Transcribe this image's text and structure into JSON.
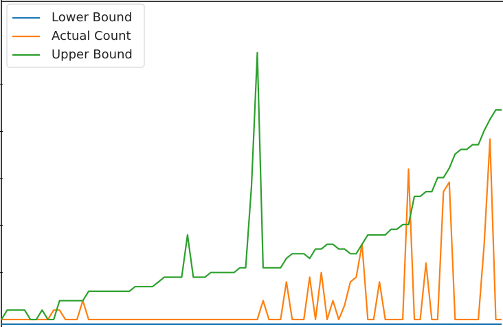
{
  "chart_data": {
    "type": "line",
    "x": [
      0,
      1,
      2,
      3,
      4,
      5,
      6,
      7,
      8,
      9,
      10,
      11,
      12,
      13,
      14,
      15,
      16,
      17,
      18,
      19,
      20,
      21,
      22,
      23,
      24,
      25,
      26,
      27,
      28,
      29,
      30,
      31,
      32,
      33,
      34,
      35,
      36,
      37,
      38,
      39,
      40,
      41,
      42,
      43,
      44,
      45,
      46,
      47,
      48,
      49,
      50,
      51,
      52,
      53,
      54,
      55,
      56,
      57,
      58,
      59,
      60,
      61,
      62,
      63,
      64,
      65,
      66,
      67,
      68,
      69,
      70,
      71,
      72,
      73,
      74,
      75,
      76,
      77,
      78,
      79,
      80,
      81,
      82,
      83,
      84,
      85,
      86
    ],
    "xlim": [
      0,
      86
    ],
    "ylim": [
      -0.8,
      34
    ],
    "yticks": [
      5,
      10,
      15,
      20,
      25
    ],
    "legend": "upper-left",
    "series": [
      {
        "name": "Lower Bound",
        "color": "#1f77b4",
        "values": [
          -0.5,
          -0.5,
          -0.5,
          -0.5,
          -0.5,
          -0.5,
          -0.5,
          -0.5,
          -0.5,
          -0.5,
          -0.5,
          -0.5,
          -0.5,
          -0.5,
          -0.5,
          -0.5,
          -0.5,
          -0.5,
          -0.5,
          -0.5,
          -0.5,
          -0.5,
          -0.5,
          -0.5,
          -0.5,
          -0.5,
          -0.5,
          -0.5,
          -0.5,
          -0.5,
          -0.5,
          -0.5,
          -0.5,
          -0.5,
          -0.5,
          -0.5,
          -0.5,
          -0.5,
          -0.5,
          -0.5,
          -0.5,
          -0.5,
          -0.5,
          -0.5,
          -0.5,
          -0.5,
          -0.5,
          -0.5,
          -0.5,
          -0.5,
          -0.5,
          -0.5,
          -0.5,
          -0.5,
          -0.5,
          -0.5,
          -0.5,
          -0.5,
          -0.5,
          -0.5,
          -0.5,
          -0.5,
          -0.5,
          -0.5,
          -0.5,
          -0.5,
          -0.5,
          -0.5,
          -0.5,
          -0.5,
          -0.5,
          -0.5,
          -0.5,
          -0.5,
          -0.5,
          -0.5,
          -0.5,
          -0.5,
          -0.5,
          -0.5,
          -0.5,
          -0.5,
          -0.5,
          -0.5,
          -0.5,
          -0.5,
          -0.5
        ]
      },
      {
        "name": "Actual Count",
        "color": "#ff7f0e",
        "values": [
          0,
          0,
          0,
          0,
          0,
          0,
          0,
          0,
          0,
          1,
          1,
          0,
          0,
          0,
          2,
          0,
          0,
          0,
          0,
          0,
          0,
          0,
          0,
          0,
          0,
          0,
          0,
          0,
          0,
          0,
          0,
          0,
          0,
          0,
          0,
          0,
          0,
          0,
          0,
          0,
          0,
          0,
          0,
          0,
          0,
          2,
          0,
          0,
          0,
          4,
          0,
          0,
          0,
          4.5,
          0,
          5,
          0,
          2,
          0,
          1.5,
          4,
          4.5,
          8,
          0,
          0,
          4,
          0,
          0,
          0,
          0,
          16,
          0,
          0,
          6,
          0,
          0,
          13.6,
          14.6,
          0,
          0,
          0,
          0,
          0,
          8,
          19.2,
          0,
          0
        ]
      },
      {
        "name": "Upper Bound",
        "color": "#2ca02c",
        "values": [
          0,
          1,
          1,
          1,
          1,
          0,
          0,
          1,
          0,
          0,
          2,
          2,
          2,
          2,
          2,
          3,
          3,
          3,
          3,
          3,
          3,
          3,
          3,
          3.5,
          3.5,
          3.5,
          3.5,
          4,
          4.5,
          4.5,
          4.5,
          4.5,
          9,
          4.5,
          4.5,
          4.5,
          5,
          5,
          5,
          5,
          5,
          5.5,
          5.5,
          14.2,
          28.4,
          5.5,
          5.5,
          5.5,
          5.5,
          6.5,
          7,
          7,
          7,
          6.5,
          7.5,
          7.5,
          8,
          8,
          7.5,
          7.5,
          7,
          7,
          8,
          9,
          9,
          9,
          9,
          9.6,
          9.6,
          10.1,
          10.1,
          13.1,
          13.1,
          13.6,
          13.6,
          15.1,
          15.1,
          16.1,
          17.6,
          18.1,
          18.1,
          18.6,
          18.6,
          20.1,
          21.3,
          22.3,
          22.3
        ]
      }
    ]
  }
}
